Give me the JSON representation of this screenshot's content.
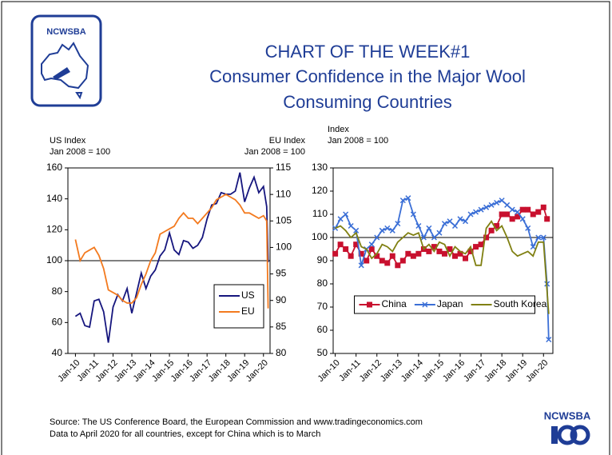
{
  "logo": "NCWSBA",
  "title": [
    "CHART OF THE WEEK#1",
    "Consumer Confidence in the Major Wool",
    "Consuming Countries"
  ],
  "chart_data": [
    {
      "type": "line",
      "ylabel": [
        "US Index",
        "Jan 2008 = 100"
      ],
      "y2label": [
        "EU Index",
        "Jan 2008 = 100"
      ],
      "x": [
        2010,
        2010.25,
        2010.5,
        2010.75,
        2011,
        2011.25,
        2011.5,
        2011.75,
        2012,
        2012.25,
        2012.5,
        2012.75,
        2013,
        2013.25,
        2013.5,
        2013.75,
        2014,
        2014.25,
        2014.5,
        2014.75,
        2015,
        2015.25,
        2015.5,
        2015.75,
        2016,
        2016.25,
        2016.5,
        2016.75,
        2017,
        2017.25,
        2017.5,
        2017.75,
        2018,
        2018.25,
        2018.5,
        2018.75,
        2019,
        2019.25,
        2019.5,
        2019.75,
        2020,
        2020.17,
        2020.25
      ],
      "xlim": [
        2009.6,
        2020.35
      ],
      "xticks": [
        {
          "value": 2010,
          "label": "Jan-10"
        },
        {
          "value": 2011,
          "label": "Jan-11"
        },
        {
          "value": 2012,
          "label": "Jan-12"
        },
        {
          "value": 2013,
          "label": "Jan-13"
        },
        {
          "value": 2014,
          "label": "Jan-14"
        },
        {
          "value": 2015,
          "label": "Jan-15"
        },
        {
          "value": 2016,
          "label": "Jan-16"
        },
        {
          "value": 2017,
          "label": "Jan-17"
        },
        {
          "value": 2018,
          "label": "Jan-18"
        },
        {
          "value": 2019,
          "label": "Jan-19"
        },
        {
          "value": 2020,
          "label": "Jan-20"
        }
      ],
      "ylim": [
        40,
        160
      ],
      "yticks": [
        40,
        60,
        80,
        100,
        120,
        140,
        160
      ],
      "y2lim": [
        80,
        115
      ],
      "y2ticks": [
        80,
        85,
        90,
        95,
        100,
        105,
        110,
        115
      ],
      "hline": 100,
      "legend": "lower right",
      "series": [
        {
          "name": "US",
          "color": "#16167e",
          "values": [
            64,
            66,
            58,
            57,
            74,
            75,
            67,
            47,
            70,
            78,
            74,
            82,
            66,
            79,
            92,
            82,
            90,
            94,
            103,
            107,
            118,
            107,
            104,
            113,
            112,
            108,
            110,
            115,
            127,
            136,
            137,
            144,
            143,
            143,
            145,
            157,
            138,
            147,
            154,
            144,
            148,
            135,
            99
          ]
        },
        {
          "name": "EU",
          "color": "#f37a1f",
          "axis": "y2",
          "values": [
            101.5,
            97.5,
            99,
            99.5,
            100,
            98.5,
            96,
            92,
            91.5,
            91,
            90,
            89.5,
            89.5,
            90.5,
            93,
            95,
            97.5,
            99,
            102.5,
            103,
            103.5,
            104,
            105.5,
            106.5,
            105.5,
            105.5,
            104.5,
            105.5,
            106.5,
            107.5,
            109,
            109.5,
            110,
            109.5,
            109,
            108,
            106.5,
            106.5,
            106,
            105.5,
            106,
            105,
            88.5
          ]
        }
      ]
    },
    {
      "type": "line",
      "ylabel": [
        "Index",
        "Jan 2008 = 100"
      ],
      "x": [
        2010,
        2010.25,
        2010.5,
        2010.75,
        2011,
        2011.25,
        2011.5,
        2011.75,
        2012,
        2012.25,
        2012.5,
        2012.75,
        2013,
        2013.25,
        2013.5,
        2013.75,
        2014,
        2014.25,
        2014.5,
        2014.75,
        2015,
        2015.25,
        2015.5,
        2015.75,
        2016,
        2016.25,
        2016.5,
        2016.75,
        2017,
        2017.25,
        2017.5,
        2017.75,
        2018,
        2018.25,
        2018.5,
        2018.75,
        2019,
        2019.25,
        2019.5,
        2019.75,
        2020,
        2020.17,
        2020.25
      ],
      "xlim": [
        2009.9,
        2020.45
      ],
      "xticks": [
        {
          "value": 2010,
          "label": "Jan-10"
        },
        {
          "value": 2011,
          "label": "Jan-11"
        },
        {
          "value": 2012,
          "label": "Jan-12"
        },
        {
          "value": 2013,
          "label": "Jan-13"
        },
        {
          "value": 2014,
          "label": "Jan-14"
        },
        {
          "value": 2015,
          "label": "Jan-15"
        },
        {
          "value": 2016,
          "label": "Jan-16"
        },
        {
          "value": 2017,
          "label": "Jan-17"
        },
        {
          "value": 2018,
          "label": "Jan-18"
        },
        {
          "value": 2019,
          "label": "Jan-19"
        },
        {
          "value": 2020,
          "label": "Jan-20"
        }
      ],
      "ylim": [
        50,
        130
      ],
      "yticks": [
        50,
        60,
        70,
        80,
        90,
        100,
        110,
        120,
        130
      ],
      "hline": 100,
      "legend": "lower center",
      "series": [
        {
          "name": "China",
          "color": "#c8102e",
          "marker": "square",
          "values": [
            93,
            97,
            95,
            92,
            97,
            93,
            90,
            95,
            92,
            90,
            89,
            92,
            88,
            90,
            93,
            92,
            93,
            95,
            94,
            96,
            94,
            93,
            95,
            92,
            93,
            91,
            94,
            96,
            97,
            100,
            103,
            105,
            110,
            110,
            108,
            109,
            112,
            112,
            110,
            111,
            113,
            108,
            null
          ]
        },
        {
          "name": "Japan",
          "color": "#3b6fd6",
          "marker": "x",
          "values": [
            104,
            108,
            110,
            105,
            103,
            88,
            95,
            97,
            100,
            103,
            104,
            103,
            106,
            116,
            117,
            110,
            105,
            100,
            104,
            100,
            102,
            106,
            107,
            105,
            108,
            107,
            110,
            111,
            112,
            113,
            114,
            115,
            116,
            114,
            112,
            111,
            108,
            104,
            96,
            100,
            100,
            80,
            56
          ]
        },
        {
          "name": "South Korea",
          "color": "#808012",
          "values": [
            104,
            105,
            103,
            100,
            102,
            96,
            95,
            91,
            93,
            97,
            96,
            94,
            98,
            100,
            102,
            101,
            102,
            95,
            97,
            94,
            98,
            97,
            92,
            96,
            94,
            93,
            96,
            88,
            88,
            104,
            107,
            103,
            105,
            100,
            94,
            92,
            93,
            94,
            92,
            98,
            98,
            77,
            67
          ]
        }
      ]
    }
  ],
  "source": [
    "Source: The US Conference Board, the European Commission and www.tradingeconomics.com",
    "Data to April 2020 for all countries, except for China which is to March"
  ],
  "footer_logo": "NCWSBA"
}
